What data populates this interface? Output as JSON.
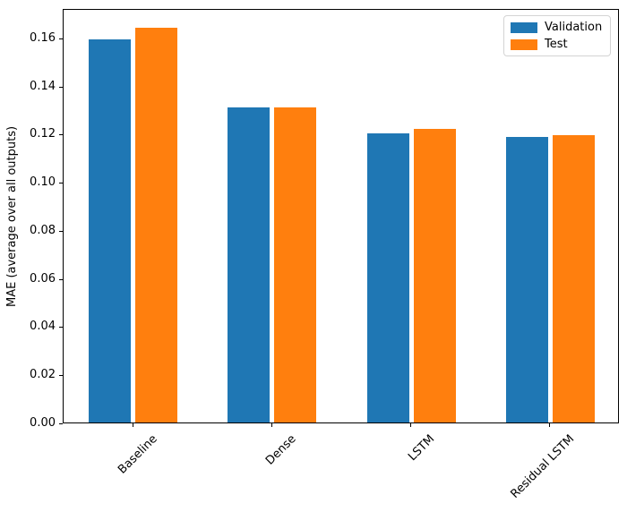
{
  "chart_data": {
    "type": "bar",
    "title": "",
    "xlabel": "",
    "ylabel": "MAE (average over all outputs)",
    "categories": [
      "Baseline",
      "Dense",
      "LSTM",
      "Residual LSTM"
    ],
    "series": [
      {
        "name": "Validation",
        "color": "#1f77b4",
        "values": [
          0.159,
          0.131,
          0.12,
          0.1185
        ]
      },
      {
        "name": "Test",
        "color": "#ff7f0e",
        "values": [
          0.164,
          0.131,
          0.122,
          0.1195
        ]
      }
    ],
    "ylim": [
      0,
      0.1722
    ],
    "yticks": [
      0.0,
      0.02,
      0.04,
      0.06,
      0.08,
      0.1,
      0.12,
      0.14,
      0.16
    ],
    "ytick_labels": [
      "0.00",
      "0.02",
      "0.04",
      "0.06",
      "0.08",
      "0.10",
      "0.12",
      "0.14",
      "0.16"
    ],
    "xtick_rotation_deg": 45,
    "grid": false,
    "legend_position": "upper right",
    "legend_labels": [
      "Validation",
      "Test"
    ],
    "axis_color": "#000000",
    "background_color": "#ffffff"
  }
}
